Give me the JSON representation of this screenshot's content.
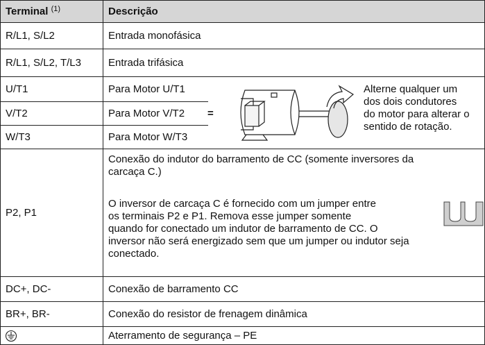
{
  "header": {
    "terminal": "Terminal",
    "footnote": "(1)",
    "description": "Descrição"
  },
  "rows": [
    {
      "terminal": "R/L1, S/L2",
      "description": "Entrada monofásica"
    },
    {
      "terminal": "R/L1, S/L2, T/L3",
      "description": "Entrada trifásica"
    },
    {
      "terminal": "U/T1",
      "description": "Para Motor U/T1"
    },
    {
      "terminal": "V/T2",
      "description": "Para Motor V/T2"
    },
    {
      "terminal": "W/T3",
      "description": "Para Motor W/T3"
    },
    {
      "terminal": "P2, P1",
      "paragraphs": [
        [
          "Conexão do indutor do barramento de CC (somente inversores da",
          "carcaça C.)"
        ],
        [
          "O inversor de carcaça C é fornecido com um jumper entre",
          "os terminais P2 e P1. Remova esse jumper somente",
          "quando for conectado um indutor de barramento de CC. O",
          "inversor não será energizado sem que um jumper ou indutor seja",
          "conectado."
        ]
      ]
    },
    {
      "terminal": "DC+, DC-",
      "description": "Conexão de barramento CC"
    },
    {
      "terminal": "BR+, BR-",
      "description": "Conexão do resistor de frenagem dinâmica"
    },
    {
      "description": "Aterramento de segurança – PE"
    }
  ],
  "motor_note": {
    "equals": "=",
    "lines": [
      "Alterne qualquer um",
      "dos dois condutores",
      "do motor para alterar o",
      "sentido de rotação."
    ]
  }
}
